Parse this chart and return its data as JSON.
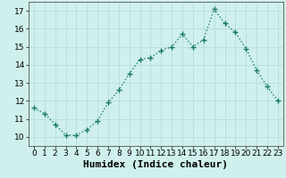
{
  "x": [
    0,
    1,
    2,
    3,
    4,
    5,
    6,
    7,
    8,
    9,
    10,
    11,
    12,
    13,
    14,
    15,
    16,
    17,
    18,
    19,
    20,
    21,
    22,
    23
  ],
  "y": [
    11.6,
    11.3,
    10.7,
    10.1,
    10.1,
    10.4,
    10.9,
    11.9,
    12.6,
    13.5,
    14.3,
    14.4,
    14.8,
    15.0,
    15.7,
    15.0,
    15.4,
    17.1,
    16.3,
    15.8,
    14.9,
    13.7,
    12.8,
    12.0
  ],
  "line_color": "#1a7a6e",
  "marker": "+",
  "marker_size": 4,
  "linewidth": 1.0,
  "xlabel": "Humidex (Indice chaleur)",
  "xlim": [
    -0.5,
    23.5
  ],
  "ylim": [
    9.5,
    17.5
  ],
  "yticks": [
    10,
    11,
    12,
    13,
    14,
    15,
    16,
    17
  ],
  "xticks": [
    0,
    1,
    2,
    3,
    4,
    5,
    6,
    7,
    8,
    9,
    10,
    11,
    12,
    13,
    14,
    15,
    16,
    17,
    18,
    19,
    20,
    21,
    22,
    23
  ],
  "bg_color": "#cff0ec",
  "grid_color": "#b8ddd8",
  "xlabel_fontsize": 8,
  "tick_fontsize": 6.5,
  "spine_color": "#555555"
}
